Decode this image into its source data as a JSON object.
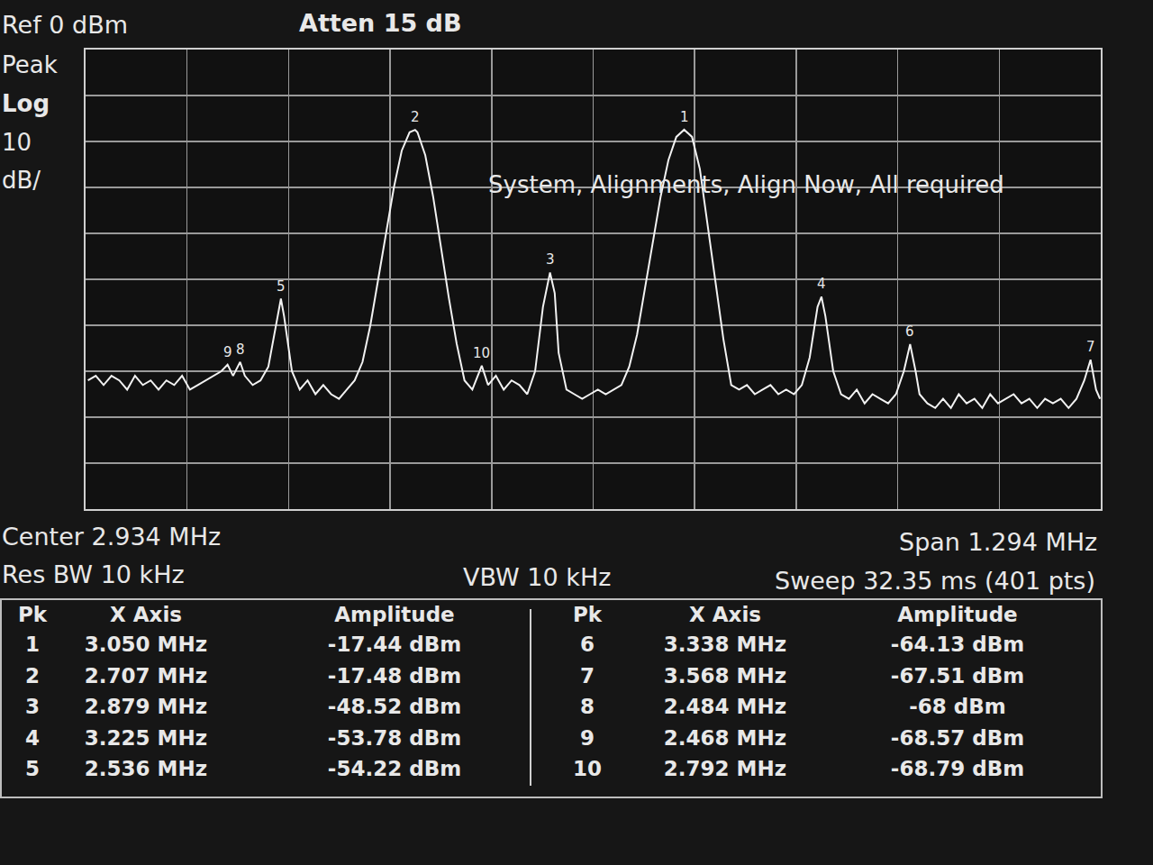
{
  "chart_data": {
    "type": "line",
    "color": "#f2f2f2",
    "grid": true,
    "tick_labels": false,
    "xlim": [
      2.287,
      3.581
    ],
    "ylim": [
      -100,
      0
    ],
    "xticks": [
      2.287,
      2.4164,
      2.5458,
      2.6752,
      2.8046,
      2.934,
      3.0634,
      3.1928,
      3.3222,
      3.4516,
      3.581
    ],
    "yticks": [
      -100,
      -90,
      -80,
      -70,
      -60,
      -50,
      -40,
      -30,
      -20,
      -10,
      0
    ],
    "annotations": [
      "Ref 0 dBm",
      "Atten 15 dB",
      "Peak",
      "Log",
      "10",
      "dB/",
      "System, Alignments, Align Now, All required",
      "Center 2.934 MHz",
      "Span 1.294 MHz",
      "Res BW 10 kHz",
      "VBW 10 kHz",
      "Sweep 32.35 ms (401 pts)"
    ],
    "peak_table_headers": [
      "Pk",
      "X Axis",
      "Amplitude"
    ],
    "peaks": [
      {
        "pk": 1,
        "x": 3.05,
        "x_label": "3.050 MHz",
        "amplitude": -17.44,
        "amplitude_label": "-17.44 dBm"
      },
      {
        "pk": 2,
        "x": 2.707,
        "x_label": "2.707 MHz",
        "amplitude": -17.48,
        "amplitude_label": "-17.48 dBm"
      },
      {
        "pk": 3,
        "x": 2.879,
        "x_label": "2.879 MHz",
        "amplitude": -48.52,
        "amplitude_label": "-48.52 dBm"
      },
      {
        "pk": 4,
        "x": 3.225,
        "x_label": "3.225 MHz",
        "amplitude": -53.78,
        "amplitude_label": "-53.78 dBm"
      },
      {
        "pk": 5,
        "x": 2.536,
        "x_label": "2.536 MHz",
        "amplitude": -54.22,
        "amplitude_label": "-54.22 dBm"
      },
      {
        "pk": 6,
        "x": 3.338,
        "x_label": "3.338 MHz",
        "amplitude": -64.13,
        "amplitude_label": "-64.13 dBm"
      },
      {
        "pk": 7,
        "x": 3.568,
        "x_label": "3.568 MHz",
        "amplitude": -67.51,
        "amplitude_label": "-67.51 dBm"
      },
      {
        "pk": 8,
        "x": 2.484,
        "x_label": "2.484 MHz",
        "amplitude": -68,
        "amplitude_label": "-68 dBm"
      },
      {
        "pk": 9,
        "x": 2.468,
        "x_label": "2.468 MHz",
        "amplitude": -68.57,
        "amplitude_label": "-68.57 dBm"
      },
      {
        "pk": 10,
        "x": 2.792,
        "x_label": "2.792 MHz",
        "amplitude": -68.79,
        "amplitude_label": "-68.79 dBm"
      }
    ],
    "x": [
      2.29,
      2.3,
      2.31,
      2.32,
      2.33,
      2.34,
      2.35,
      2.36,
      2.37,
      2.38,
      2.39,
      2.4,
      2.41,
      2.42,
      2.43,
      2.44,
      2.45,
      2.46,
      2.468,
      2.475,
      2.484,
      2.49,
      2.5,
      2.51,
      2.52,
      2.53,
      2.536,
      2.54,
      2.55,
      2.56,
      2.57,
      2.58,
      2.59,
      2.6,
      2.61,
      2.62,
      2.63,
      2.64,
      2.65,
      2.66,
      2.67,
      2.68,
      2.69,
      2.7,
      2.707,
      2.71,
      2.72,
      2.73,
      2.74,
      2.75,
      2.76,
      2.77,
      2.78,
      2.792,
      2.8,
      2.81,
      2.82,
      2.83,
      2.84,
      2.85,
      2.86,
      2.87,
      2.879,
      2.885,
      2.89,
      2.9,
      2.91,
      2.92,
      2.93,
      2.94,
      2.95,
      2.96,
      2.97,
      2.98,
      2.99,
      3.0,
      3.01,
      3.02,
      3.03,
      3.04,
      3.05,
      3.06,
      3.07,
      3.08,
      3.09,
      3.1,
      3.11,
      3.12,
      3.13,
      3.14,
      3.15,
      3.16,
      3.17,
      3.18,
      3.19,
      3.2,
      3.21,
      3.22,
      3.225,
      3.23,
      3.24,
      3.25,
      3.26,
      3.27,
      3.28,
      3.29,
      3.3,
      3.31,
      3.32,
      3.33,
      3.338,
      3.345,
      3.35,
      3.36,
      3.37,
      3.38,
      3.39,
      3.4,
      3.41,
      3.42,
      3.43,
      3.44,
      3.45,
      3.46,
      3.47,
      3.48,
      3.49,
      3.5,
      3.51,
      3.52,
      3.53,
      3.54,
      3.55,
      3.56,
      3.568,
      3.575,
      3.58
    ],
    "values": [
      -72,
      -71,
      -73,
      -71,
      -72,
      -74,
      -71,
      -73,
      -72,
      -74,
      -72,
      -73,
      -71,
      -74,
      -73,
      -72,
      -71,
      -70,
      -68.57,
      -71,
      -68,
      -71,
      -73,
      -72,
      -69,
      -60,
      -54.22,
      -58,
      -70,
      -74,
      -72,
      -75,
      -73,
      -75,
      -76,
      -74,
      -72,
      -68,
      -60,
      -50,
      -40,
      -30,
      -22,
      -18,
      -17.48,
      -18,
      -23,
      -32,
      -43,
      -54,
      -64,
      -72,
      -74,
      -68.79,
      -73,
      -71,
      -74,
      -72,
      -73,
      -75,
      -70,
      -56,
      -48.52,
      -53,
      -66,
      -74,
      -75,
      -76,
      -75,
      -74,
      -75,
      -74,
      -73,
      -69,
      -62,
      -52,
      -42,
      -32,
      -24,
      -19,
      -17.44,
      -19,
      -26,
      -38,
      -50,
      -63,
      -73,
      -74,
      -73,
      -75,
      -74,
      -73,
      -75,
      -74,
      -75,
      -73,
      -67,
      -56,
      -53.78,
      -58,
      -70,
      -75,
      -76,
      -74,
      -77,
      -75,
      -76,
      -77,
      -75,
      -70,
      -64.13,
      -70,
      -75,
      -77,
      -78,
      -76,
      -78,
      -75,
      -77,
      -76,
      -78,
      -75,
      -77,
      -76,
      -75,
      -77,
      -76,
      -78,
      -76,
      -77,
      -76,
      -78,
      -76,
      -72,
      -67.51,
      -74,
      -76
    ]
  }
}
